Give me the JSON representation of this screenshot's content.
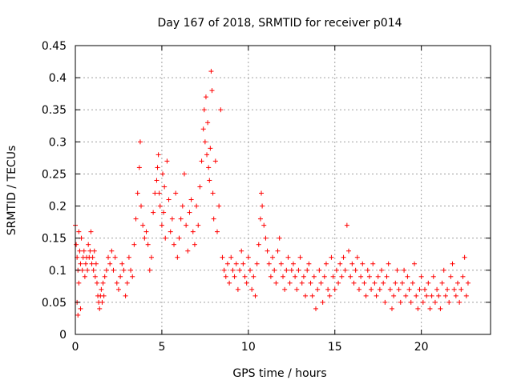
{
  "chart_data": {
    "type": "scatter",
    "title": "Day 167 of 2018, SRMTID for receiver p014",
    "xlabel": "GPS time / hours",
    "ylabel": "SRMTID / TECUs",
    "xlim": [
      0,
      24
    ],
    "ylim": [
      0,
      0.45
    ],
    "xticks": [
      0,
      5,
      10,
      15,
      20
    ],
    "yticks": [
      0,
      0.05,
      0.1,
      0.15,
      0.2,
      0.25,
      0.3,
      0.35,
      0.4,
      0.45
    ],
    "xtick_labels": [
      "0",
      "5",
      "10",
      "15",
      "20"
    ],
    "ytick_labels": [
      "0",
      "0.05",
      "0.1",
      "0.15",
      "0.2",
      "0.25",
      "0.3",
      "0.35",
      "0.4",
      "0.45"
    ],
    "grid": true,
    "marker": "+",
    "color": "#ff0000",
    "series": [
      {
        "name": "p014",
        "points": [
          [
            0.0,
            0.17
          ],
          [
            0.05,
            0.14
          ],
          [
            0.1,
            0.12
          ],
          [
            0.1,
            0.05
          ],
          [
            0.15,
            0.1
          ],
          [
            0.15,
            0.03
          ],
          [
            0.2,
            0.08
          ],
          [
            0.2,
            0.16
          ],
          [
            0.25,
            0.13
          ],
          [
            0.3,
            0.04
          ],
          [
            0.3,
            0.11
          ],
          [
            0.35,
            0.15
          ],
          [
            0.4,
            0.1
          ],
          [
            0.45,
            0.12
          ],
          [
            0.5,
            0.13
          ],
          [
            0.55,
            0.09
          ],
          [
            0.6,
            0.11
          ],
          [
            0.65,
            0.12
          ],
          [
            0.7,
            0.1
          ],
          [
            0.75,
            0.14
          ],
          [
            0.8,
            0.12
          ],
          [
            0.85,
            0.13
          ],
          [
            0.9,
            0.16
          ],
          [
            0.95,
            0.11
          ],
          [
            1.0,
            0.12
          ],
          [
            1.05,
            0.1
          ],
          [
            1.1,
            0.13
          ],
          [
            1.15,
            0.09
          ],
          [
            1.2,
            0.11
          ],
          [
            1.25,
            0.08
          ],
          [
            1.3,
            0.06
          ],
          [
            1.35,
            0.05
          ],
          [
            1.4,
            0.04
          ],
          [
            1.45,
            0.06
          ],
          [
            1.5,
            0.07
          ],
          [
            1.55,
            0.05
          ],
          [
            1.6,
            0.08
          ],
          [
            1.65,
            0.06
          ],
          [
            1.7,
            0.09
          ],
          [
            1.8,
            0.1
          ],
          [
            1.9,
            0.12
          ],
          [
            2.0,
            0.11
          ],
          [
            2.1,
            0.13
          ],
          [
            2.2,
            0.1
          ],
          [
            2.3,
            0.12
          ],
          [
            2.4,
            0.08
          ],
          [
            2.5,
            0.07
          ],
          [
            2.6,
            0.09
          ],
          [
            2.7,
            0.11
          ],
          [
            2.8,
            0.1
          ],
          [
            2.9,
            0.06
          ],
          [
            3.0,
            0.08
          ],
          [
            3.1,
            0.12
          ],
          [
            3.2,
            0.1
          ],
          [
            3.3,
            0.09
          ],
          [
            3.4,
            0.14
          ],
          [
            3.5,
            0.18
          ],
          [
            3.6,
            0.22
          ],
          [
            3.7,
            0.26
          ],
          [
            3.75,
            0.3
          ],
          [
            3.8,
            0.2
          ],
          [
            3.9,
            0.17
          ],
          [
            4.0,
            0.15
          ],
          [
            4.1,
            0.16
          ],
          [
            4.2,
            0.14
          ],
          [
            4.3,
            0.1
          ],
          [
            4.4,
            0.12
          ],
          [
            4.5,
            0.19
          ],
          [
            4.6,
            0.22
          ],
          [
            4.7,
            0.24
          ],
          [
            4.75,
            0.26
          ],
          [
            4.8,
            0.28
          ],
          [
            4.85,
            0.22
          ],
          [
            4.9,
            0.2
          ],
          [
            5.0,
            0.17
          ],
          [
            5.05,
            0.25
          ],
          [
            5.1,
            0.19
          ],
          [
            5.15,
            0.23
          ],
          [
            5.2,
            0.15
          ],
          [
            5.3,
            0.27
          ],
          [
            5.4,
            0.21
          ],
          [
            5.5,
            0.16
          ],
          [
            5.6,
            0.18
          ],
          [
            5.7,
            0.14
          ],
          [
            5.8,
            0.22
          ],
          [
            5.9,
            0.12
          ],
          [
            6.0,
            0.15
          ],
          [
            6.1,
            0.18
          ],
          [
            6.2,
            0.2
          ],
          [
            6.3,
            0.25
          ],
          [
            6.4,
            0.17
          ],
          [
            6.5,
            0.13
          ],
          [
            6.6,
            0.19
          ],
          [
            6.7,
            0.21
          ],
          [
            6.8,
            0.16
          ],
          [
            6.9,
            0.14
          ],
          [
            7.0,
            0.2
          ],
          [
            7.1,
            0.17
          ],
          [
            7.2,
            0.23
          ],
          [
            7.3,
            0.27
          ],
          [
            7.4,
            0.32
          ],
          [
            7.45,
            0.35
          ],
          [
            7.5,
            0.3
          ],
          [
            7.55,
            0.37
          ],
          [
            7.6,
            0.28
          ],
          [
            7.65,
            0.33
          ],
          [
            7.7,
            0.26
          ],
          [
            7.75,
            0.24
          ],
          [
            7.8,
            0.29
          ],
          [
            7.85,
            0.41
          ],
          [
            7.9,
            0.38
          ],
          [
            7.95,
            0.22
          ],
          [
            8.0,
            0.18
          ],
          [
            8.1,
            0.27
          ],
          [
            8.2,
            0.16
          ],
          [
            8.3,
            0.2
          ],
          [
            8.4,
            0.35
          ],
          [
            8.5,
            0.12
          ],
          [
            8.6,
            0.1
          ],
          [
            8.7,
            0.09
          ],
          [
            8.8,
            0.11
          ],
          [
            8.9,
            0.08
          ],
          [
            9.0,
            0.12
          ],
          [
            9.1,
            0.1
          ],
          [
            9.2,
            0.09
          ],
          [
            9.3,
            0.11
          ],
          [
            9.4,
            0.07
          ],
          [
            9.5,
            0.1
          ],
          [
            9.6,
            0.13
          ],
          [
            9.7,
            0.11
          ],
          [
            9.8,
            0.09
          ],
          [
            9.9,
            0.08
          ],
          [
            10.0,
            0.12
          ],
          [
            10.1,
            0.1
          ],
          [
            10.2,
            0.07
          ],
          [
            10.3,
            0.09
          ],
          [
            10.4,
            0.06
          ],
          [
            10.5,
            0.11
          ],
          [
            10.6,
            0.14
          ],
          [
            10.7,
            0.18
          ],
          [
            10.75,
            0.22
          ],
          [
            10.8,
            0.2
          ],
          [
            10.9,
            0.17
          ],
          [
            11.0,
            0.15
          ],
          [
            11.1,
            0.13
          ],
          [
            11.2,
            0.11
          ],
          [
            11.3,
            0.09
          ],
          [
            11.4,
            0.12
          ],
          [
            11.5,
            0.1
          ],
          [
            11.6,
            0.08
          ],
          [
            11.7,
            0.13
          ],
          [
            11.8,
            0.15
          ],
          [
            11.9,
            0.11
          ],
          [
            12.0,
            0.09
          ],
          [
            12.1,
            0.07
          ],
          [
            12.2,
            0.1
          ],
          [
            12.3,
            0.12
          ],
          [
            12.4,
            0.08
          ],
          [
            12.5,
            0.1
          ],
          [
            12.6,
            0.11
          ],
          [
            12.7,
            0.09
          ],
          [
            12.8,
            0.07
          ],
          [
            12.9,
            0.1
          ],
          [
            13.0,
            0.12
          ],
          [
            13.1,
            0.08
          ],
          [
            13.2,
            0.09
          ],
          [
            13.3,
            0.06
          ],
          [
            13.4,
            0.1
          ],
          [
            13.5,
            0.11
          ],
          [
            13.6,
            0.08
          ],
          [
            13.7,
            0.06
          ],
          [
            13.8,
            0.09
          ],
          [
            13.9,
            0.04
          ],
          [
            14.0,
            0.07
          ],
          [
            14.1,
            0.1
          ],
          [
            14.2,
            0.08
          ],
          [
            14.3,
            0.05
          ],
          [
            14.4,
            0.09
          ],
          [
            14.5,
            0.11
          ],
          [
            14.6,
            0.07
          ],
          [
            14.7,
            0.06
          ],
          [
            14.8,
            0.12
          ],
          [
            14.9,
            0.09
          ],
          [
            15.0,
            0.07
          ],
          [
            15.1,
            0.1
          ],
          [
            15.2,
            0.08
          ],
          [
            15.3,
            0.11
          ],
          [
            15.4,
            0.09
          ],
          [
            15.5,
            0.12
          ],
          [
            15.6,
            0.1
          ],
          [
            15.7,
            0.17
          ],
          [
            15.8,
            0.13
          ],
          [
            15.9,
            0.09
          ],
          [
            16.0,
            0.11
          ],
          [
            16.1,
            0.08
          ],
          [
            16.2,
            0.1
          ],
          [
            16.3,
            0.12
          ],
          [
            16.4,
            0.07
          ],
          [
            16.5,
            0.09
          ],
          [
            16.6,
            0.11
          ],
          [
            16.7,
            0.08
          ],
          [
            16.8,
            0.06
          ],
          [
            16.9,
            0.1
          ],
          [
            17.0,
            0.09
          ],
          [
            17.1,
            0.07
          ],
          [
            17.2,
            0.11
          ],
          [
            17.3,
            0.08
          ],
          [
            17.4,
            0.06
          ],
          [
            17.5,
            0.09
          ],
          [
            17.6,
            0.07
          ],
          [
            17.7,
            0.1
          ],
          [
            17.8,
            0.08
          ],
          [
            17.9,
            0.05
          ],
          [
            18.0,
            0.09
          ],
          [
            18.1,
            0.11
          ],
          [
            18.2,
            0.07
          ],
          [
            18.3,
            0.04
          ],
          [
            18.4,
            0.06
          ],
          [
            18.5,
            0.08
          ],
          [
            18.6,
            0.1
          ],
          [
            18.7,
            0.07
          ],
          [
            18.8,
            0.05
          ],
          [
            18.9,
            0.08
          ],
          [
            19.0,
            0.1
          ],
          [
            19.1,
            0.06
          ],
          [
            19.2,
            0.09
          ],
          [
            19.3,
            0.07
          ],
          [
            19.4,
            0.05
          ],
          [
            19.5,
            0.08
          ],
          [
            19.6,
            0.11
          ],
          [
            19.7,
            0.06
          ],
          [
            19.8,
            0.04
          ],
          [
            19.9,
            0.07
          ],
          [
            20.0,
            0.09
          ],
          [
            20.1,
            0.05
          ],
          [
            20.2,
            0.07
          ],
          [
            20.3,
            0.06
          ],
          [
            20.4,
            0.08
          ],
          [
            20.5,
            0.04
          ],
          [
            20.6,
            0.06
          ],
          [
            20.7,
            0.09
          ],
          [
            20.8,
            0.05
          ],
          [
            20.9,
            0.07
          ],
          [
            21.0,
            0.06
          ],
          [
            21.1,
            0.04
          ],
          [
            21.2,
            0.08
          ],
          [
            21.3,
            0.1
          ],
          [
            21.4,
            0.06
          ],
          [
            21.5,
            0.07
          ],
          [
            21.6,
            0.05
          ],
          [
            21.7,
            0.09
          ],
          [
            21.8,
            0.11
          ],
          [
            21.9,
            0.07
          ],
          [
            22.0,
            0.06
          ],
          [
            22.1,
            0.08
          ],
          [
            22.2,
            0.05
          ],
          [
            22.3,
            0.07
          ],
          [
            22.4,
            0.09
          ],
          [
            22.5,
            0.12
          ],
          [
            22.6,
            0.06
          ],
          [
            22.7,
            0.08
          ]
        ]
      }
    ]
  }
}
